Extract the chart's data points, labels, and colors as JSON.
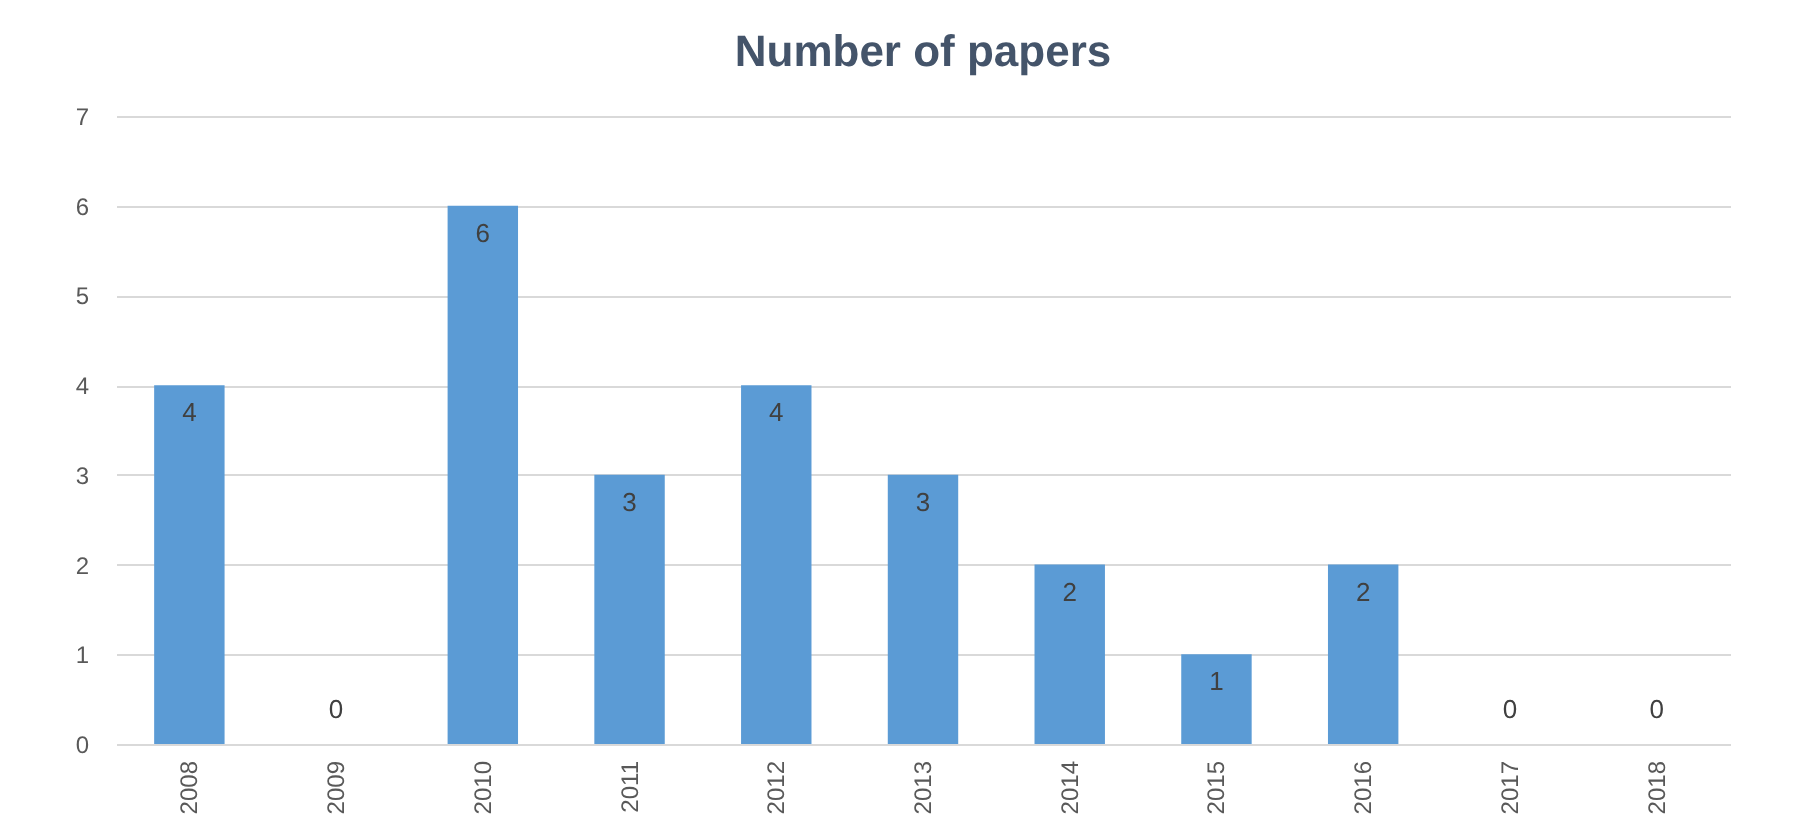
{
  "chart_data": {
    "type": "bar",
    "title": "Number of papers",
    "categories": [
      "2008",
      "2009",
      "2010",
      "2011",
      "2012",
      "2013",
      "2014",
      "2015",
      "2016",
      "2017",
      "2018"
    ],
    "values": [
      4,
      0,
      6,
      3,
      4,
      3,
      2,
      1,
      2,
      0,
      0
    ],
    "color": "#5b9bd5",
    "ylim": [
      0,
      7
    ],
    "yticks": [
      0,
      1,
      2,
      3,
      4,
      5,
      6,
      7
    ],
    "grid": "y",
    "data_labels": true
  }
}
